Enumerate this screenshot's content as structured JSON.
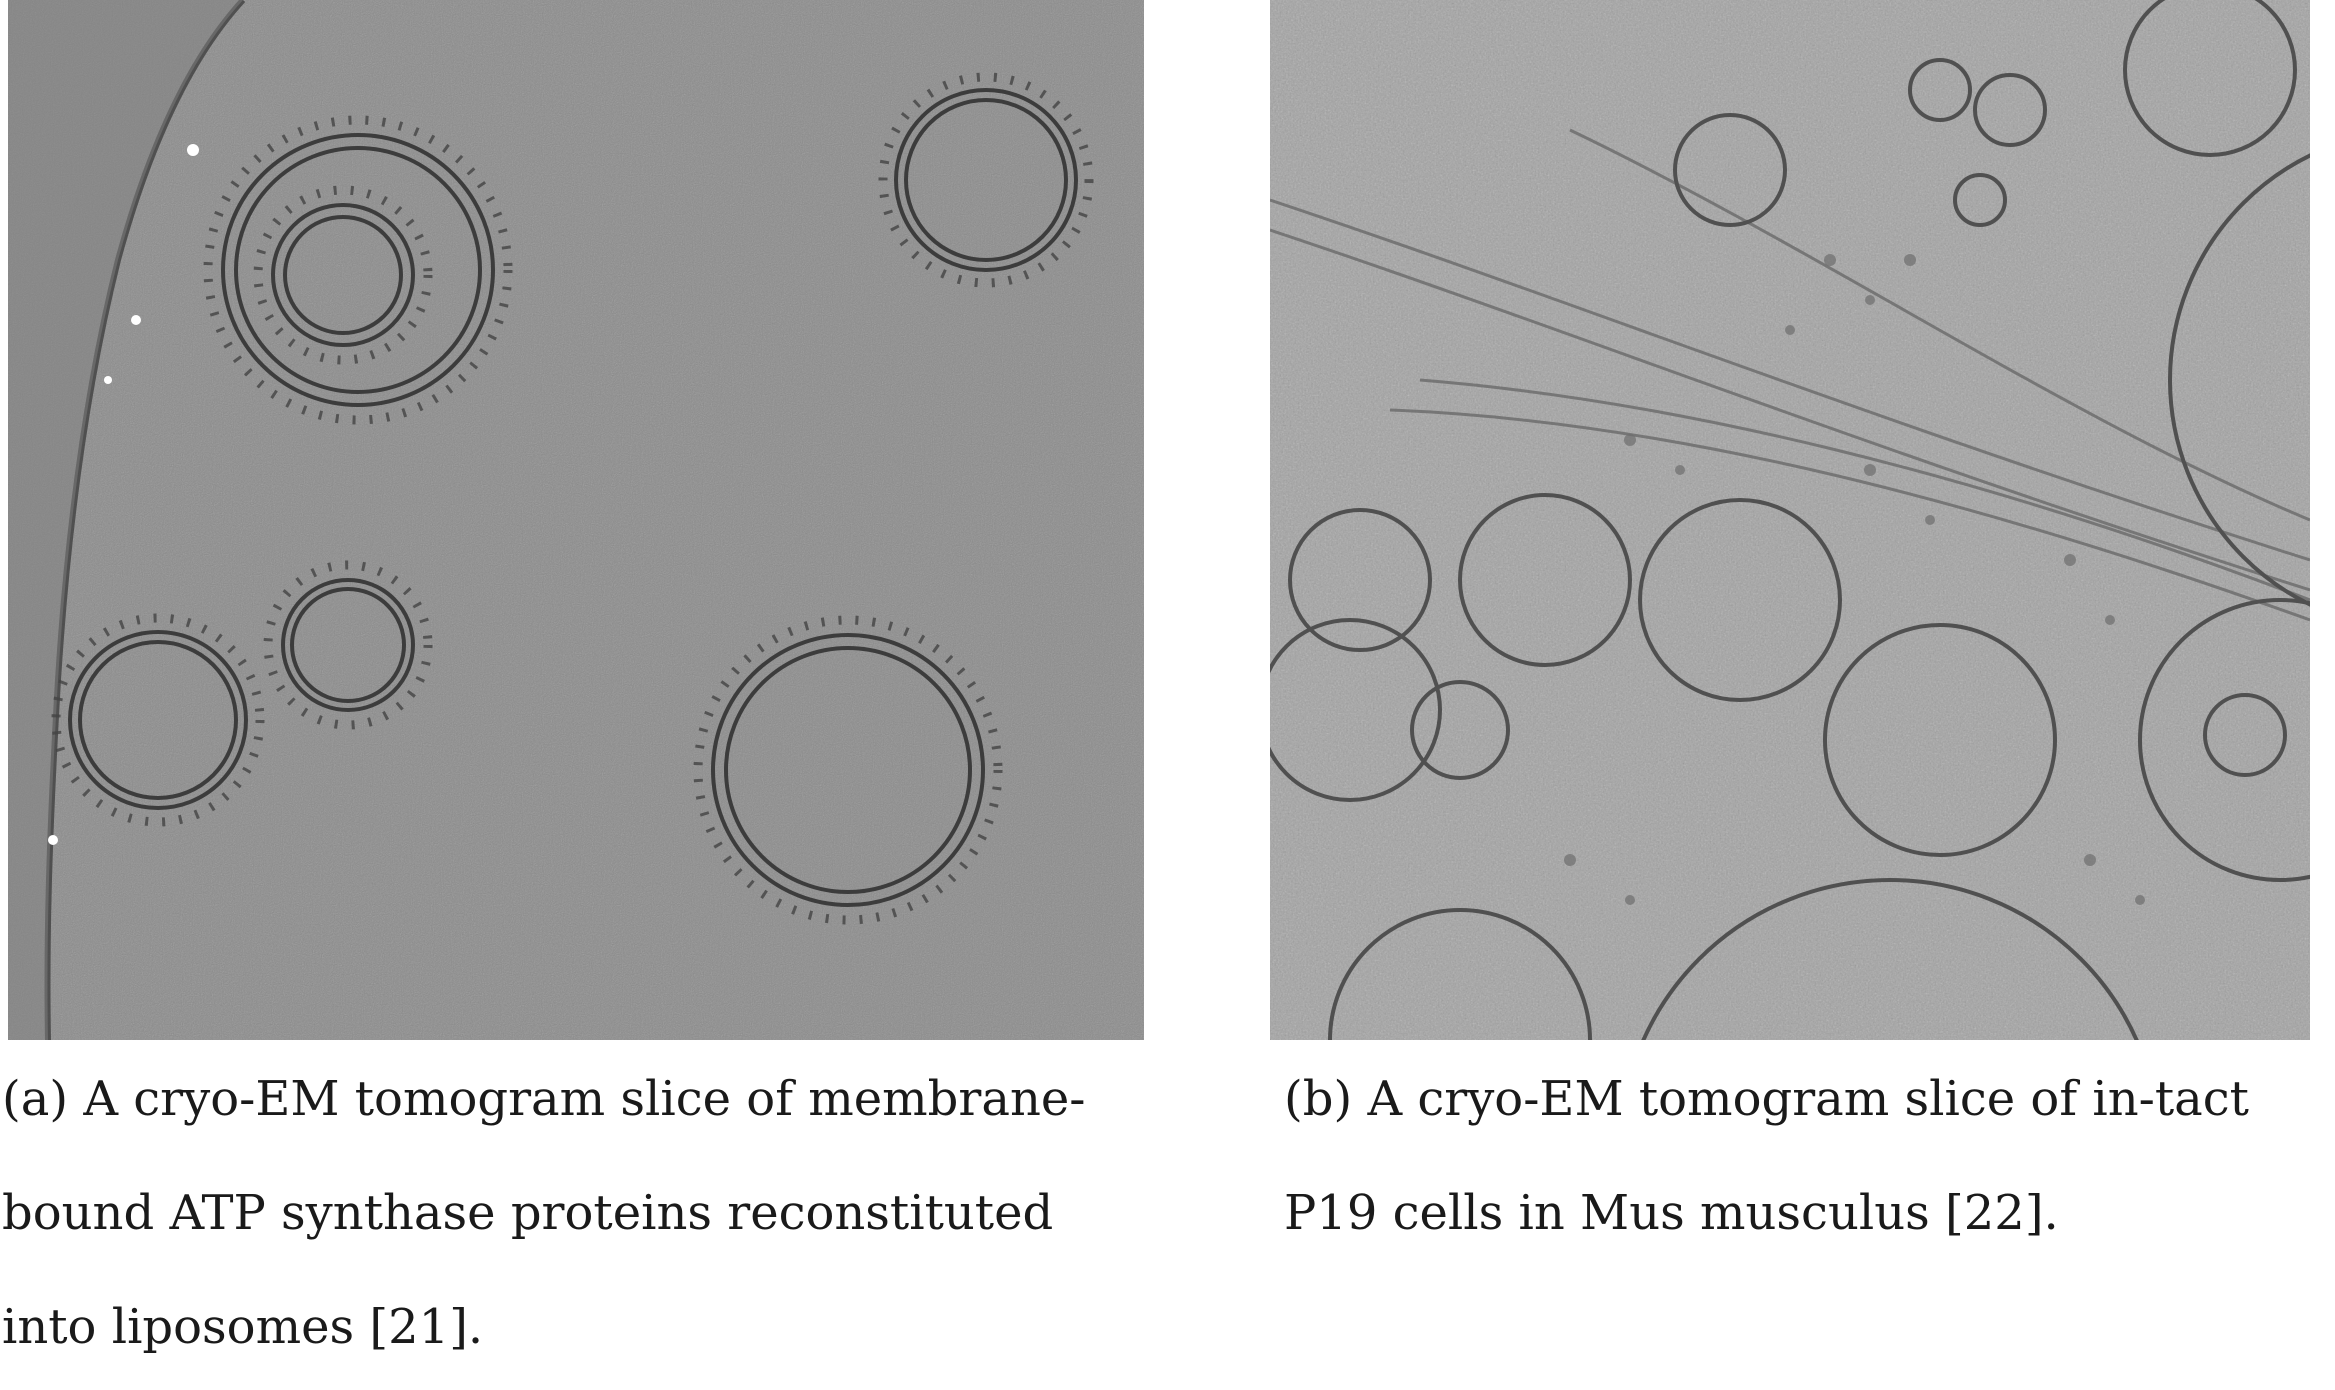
{
  "figures": [
    {
      "id": "a",
      "caption_lines": [
        "(a) A cryo-EM tomogram slice of membrane-",
        "bound ATP synthase proteins reconstituted",
        "into liposomes [21]."
      ]
    },
    {
      "id": "b",
      "caption_lines": [
        "(b) A cryo-EM tomogram slice of in-tact",
        "P19 cells in Mus musculus [22]."
      ]
    }
  ],
  "colors": {
    "tomogram_a_background": "#8a8a8a",
    "tomogram_b_background": "#a2a2a2",
    "membrane_dark": "#3c3c3c",
    "membrane_light": "#6a6a6a"
  }
}
